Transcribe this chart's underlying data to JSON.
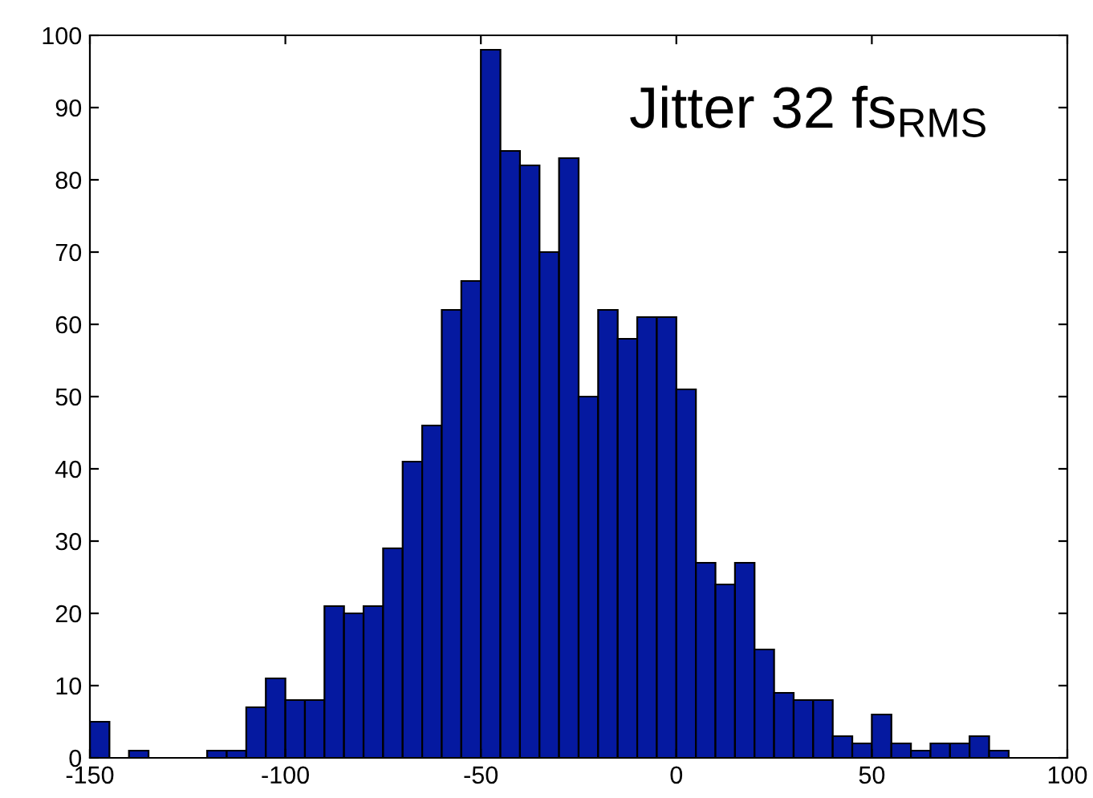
{
  "chart_data": {
    "type": "histogram",
    "color": "#0519a0",
    "bins": [
      -150,
      -145,
      -140,
      -135,
      -130,
      -125,
      -120,
      -115,
      -110,
      -105,
      -100,
      -95,
      -90,
      -85,
      -80,
      -75,
      -70,
      -65,
      -60,
      -55,
      -50,
      -45,
      -40,
      -35,
      -30,
      -25,
      -20,
      -15,
      -10,
      -5,
      0,
      5,
      10,
      15,
      20,
      25,
      30,
      35,
      40,
      45,
      50,
      55,
      60,
      65,
      70,
      75,
      80,
      85
    ],
    "values": [
      5,
      0,
      1,
      0,
      0,
      0,
      1,
      1,
      7,
      11,
      8,
      8,
      21,
      20,
      21,
      29,
      41,
      46,
      62,
      66,
      98,
      84,
      82,
      70,
      83,
      50,
      62,
      58,
      61,
      61,
      51,
      27,
      24,
      27,
      15,
      9,
      8,
      8,
      3,
      2,
      6,
      2,
      1,
      2,
      2,
      3,
      1
    ],
    "xlim": [
      -150,
      100
    ],
    "xticks": [
      -150,
      -100,
      -50,
      0,
      50,
      100
    ],
    "ylim": [
      0,
      100
    ],
    "yticks": [
      0,
      10,
      20,
      30,
      40,
      50,
      60,
      70,
      80,
      90,
      100
    ],
    "grid": false,
    "annotations": [
      {
        "text": "Jitter 32 fs$_{RMS}$"
      }
    ]
  }
}
